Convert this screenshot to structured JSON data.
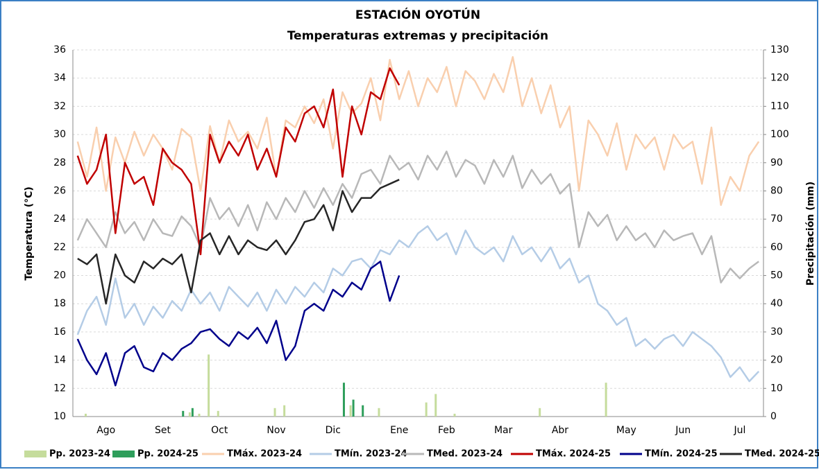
{
  "chart_data": {
    "type": "line",
    "title": "ESTACIÓN OYOTÚN",
    "subtitle": "Temperaturas extremas y precipitación",
    "y_label": "Temperatura (°C)",
    "y2_label": "Precipitación (mm)",
    "categories": [
      null,
      null,
      null,
      "Ago",
      null,
      null,
      null,
      null,
      null,
      "Set",
      null,
      null,
      null,
      null,
      null,
      "Oct",
      null,
      null,
      null,
      null,
      null,
      "Nov",
      null,
      null,
      null,
      null,
      null,
      "Dic",
      null,
      null,
      null,
      null,
      null,
      null,
      "Ene",
      null,
      null,
      null,
      null,
      "Feb",
      null,
      null,
      null,
      null,
      null,
      "Mar",
      null,
      null,
      null,
      null,
      null,
      "Abr",
      null,
      null,
      null,
      null,
      null,
      null,
      "May",
      null,
      null,
      null,
      null,
      null,
      "Jun",
      null,
      null,
      null,
      null,
      null,
      "Jul",
      null,
      null
    ],
    "ylim": [
      10,
      36
    ],
    "yticks": [
      10,
      12,
      14,
      16,
      18,
      20,
      22,
      24,
      26,
      28,
      30,
      32,
      34,
      36
    ],
    "y2lim": [
      0,
      130
    ],
    "y2ticks": [
      0,
      10,
      20,
      30,
      40,
      50,
      60,
      70,
      80,
      90,
      100,
      110,
      120,
      130
    ],
    "grid": true,
    "legend": "bottom",
    "series": [
      {
        "name": "Pp. 2023-24",
        "type": "bar",
        "axis": "y2",
        "color": "#c5dc9c",
        "values": [
          0,
          1,
          0,
          0,
          0,
          0,
          0,
          0,
          0,
          0,
          0,
          0,
          1.5,
          1,
          22,
          2,
          0,
          0,
          0,
          0,
          0,
          3,
          4,
          0,
          0,
          0,
          0,
          0,
          0,
          4,
          0,
          0,
          3,
          0,
          0,
          0,
          0,
          5,
          8,
          0,
          1,
          0,
          0,
          0,
          0,
          0,
          0,
          0,
          0,
          3,
          0,
          0,
          0,
          0,
          0,
          0,
          12,
          0,
          0,
          0,
          0,
          0,
          0,
          0,
          0,
          0,
          0,
          0,
          0,
          0,
          0,
          0,
          0
        ]
      },
      {
        "name": "Pp. 2024-25",
        "type": "bar",
        "axis": "y2",
        "color": "#2e9e5b",
        "values": [
          0,
          0,
          0,
          0,
          0,
          0,
          0,
          0,
          0,
          0,
          0,
          2,
          3,
          0,
          0,
          0,
          0,
          0,
          0,
          0,
          0,
          0,
          0,
          0,
          0,
          0,
          0,
          0,
          12,
          6,
          4,
          0,
          0,
          0,
          0,
          null,
          null,
          null,
          null,
          null,
          null,
          null,
          null,
          null,
          null,
          null,
          null,
          null,
          null,
          null,
          null,
          null,
          null,
          null,
          null,
          null,
          null,
          null,
          null,
          null,
          null,
          null,
          null,
          null,
          null,
          null,
          null,
          null,
          null,
          null,
          null,
          null,
          null
        ]
      },
      {
        "name": "TMáx. 2023-24",
        "color": "#f9cfae",
        "values": [
          29.5,
          27,
          30.5,
          26,
          29.8,
          28,
          30.2,
          28.5,
          30,
          29,
          27.5,
          30.4,
          29.8,
          26,
          30.6,
          28,
          31,
          29.5,
          30.2,
          29,
          31.2,
          27,
          31,
          30.5,
          32,
          30.8,
          32.5,
          29,
          33,
          31.5,
          32.2,
          34,
          31,
          35.3,
          32.5,
          34.5,
          32,
          34,
          33,
          34.8,
          32,
          34.5,
          33.8,
          32.5,
          34.3,
          33,
          35.5,
          32,
          34,
          31.5,
          33.5,
          30.5,
          32,
          26,
          31,
          30,
          28.5,
          30.8,
          27.5,
          30,
          29,
          29.8,
          27.5,
          30,
          29,
          29.5,
          26.5,
          30.5,
          25,
          27,
          26,
          28.5,
          29.5
        ]
      },
      {
        "name": "TMín. 2023-24",
        "color": "#b4cce6",
        "values": [
          15.8,
          17.5,
          18.5,
          16.5,
          19.8,
          17,
          18,
          16.5,
          17.8,
          17,
          18.2,
          17.5,
          19,
          18,
          18.8,
          17.5,
          19.2,
          18.5,
          17.8,
          18.8,
          17.5,
          19,
          18,
          19.2,
          18.5,
          19.5,
          18.8,
          20.5,
          20,
          21,
          21.2,
          20.5,
          21.8,
          21.5,
          22.5,
          22,
          23,
          23.5,
          22.5,
          23,
          21.5,
          23.2,
          22,
          21.5,
          22,
          21,
          22.8,
          21.5,
          22,
          21,
          22,
          20.5,
          21.2,
          19.5,
          20,
          18,
          17.5,
          16.5,
          17,
          15,
          15.5,
          14.8,
          15.5,
          15.8,
          15,
          16,
          15.5,
          15,
          14.2,
          12.8,
          13.5,
          12.5,
          13.2
        ]
      },
      {
        "name": "TMed. 2023-24",
        "color": "#b8b8b8",
        "values": [
          22.5,
          24,
          23,
          22,
          24.5,
          23,
          23.8,
          22.5,
          24,
          23,
          22.8,
          24.2,
          23.5,
          22,
          25.5,
          24,
          24.8,
          23.5,
          25,
          23.2,
          25.2,
          24,
          25.5,
          24.5,
          26,
          24.8,
          26.2,
          25,
          26.5,
          25.5,
          27.2,
          27.5,
          26.5,
          28.5,
          27.5,
          28,
          26.8,
          28.5,
          27.5,
          28.8,
          27,
          28.2,
          27.8,
          26.5,
          28.2,
          27,
          28.5,
          26.2,
          27.5,
          26.5,
          27.2,
          25.8,
          26.5,
          22,
          24.5,
          23.5,
          24.3,
          22.5,
          23.5,
          22.5,
          23,
          22,
          23.2,
          22.5,
          22.8,
          23,
          21.5,
          22.8,
          19.5,
          20.5,
          19.8,
          20.5,
          21
        ]
      },
      {
        "name": "TMáx. 2024-25",
        "color": "#c00000",
        "values": [
          28.5,
          26.5,
          27.5,
          30,
          23,
          28,
          26.5,
          27,
          25,
          29,
          28,
          27.5,
          26.5,
          21.5,
          30,
          28,
          29.5,
          28.5,
          30,
          27.5,
          29,
          27,
          30.5,
          29.5,
          31.5,
          32,
          30.5,
          33.2,
          27,
          32,
          30,
          33,
          32.5,
          34.7,
          33.5,
          null,
          null,
          null,
          null,
          null,
          null,
          null,
          null,
          null,
          null,
          null,
          null,
          null,
          null,
          null,
          null,
          null,
          null,
          null,
          null,
          null,
          null,
          null,
          null,
          null,
          null,
          null,
          null,
          null,
          null,
          null,
          null,
          null,
          null,
          null,
          null,
          null,
          null
        ]
      },
      {
        "name": "TMín. 2024-25",
        "color": "#00008b",
        "values": [
          15.5,
          14,
          13,
          14.5,
          12.2,
          14.5,
          15,
          13.5,
          13.2,
          14.5,
          14,
          14.8,
          15.2,
          16,
          16.2,
          15.5,
          15,
          16,
          15.5,
          16.3,
          15.2,
          16.8,
          14,
          15,
          17.5,
          18,
          17.5,
          19,
          18.5,
          19.5,
          19,
          20.5,
          21,
          18.2,
          20,
          null,
          null,
          null,
          null,
          null,
          null,
          null,
          null,
          null,
          null,
          null,
          null,
          null,
          null,
          null,
          null,
          null,
          null,
          null,
          null,
          null,
          null,
          null,
          null,
          null,
          null,
          null,
          null,
          null,
          null,
          null,
          null,
          null,
          null,
          null,
          null,
          null,
          null
        ]
      },
      {
        "name": "TMed. 2024-25",
        "color": "#262626",
        "values": [
          21.2,
          20.8,
          21.5,
          18,
          21.5,
          20,
          19.5,
          21,
          20.5,
          21.2,
          20.8,
          21.5,
          18.8,
          22.5,
          23,
          21.5,
          22.8,
          21.5,
          22.5,
          22,
          21.8,
          22.5,
          21.5,
          22.5,
          23.8,
          24,
          25,
          23.2,
          26,
          24.5,
          25.5,
          25.5,
          26.2,
          26.5,
          26.8,
          null,
          null,
          null,
          null,
          null,
          null,
          null,
          null,
          null,
          null,
          null,
          null,
          null,
          null,
          null,
          null,
          null,
          null,
          null,
          null,
          null,
          null,
          null,
          null,
          null,
          null,
          null,
          null,
          null,
          null,
          null,
          null,
          null,
          null,
          null,
          null,
          null,
          null
        ]
      }
    ]
  }
}
